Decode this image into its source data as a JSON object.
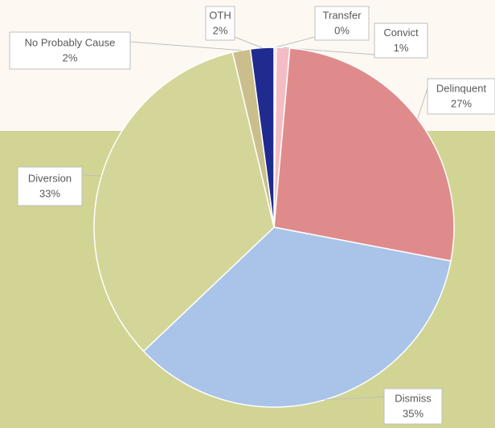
{
  "chart_data": {
    "type": "pie",
    "categories": [
      "Transfer",
      "Convict",
      "Delinquent",
      "Dismiss",
      "Diversion",
      "No Probably Cause",
      "OTH"
    ],
    "values": [
      0.2,
      1.2,
      26.6,
      34.9,
      33.4,
      1.6,
      2.1
    ],
    "value_labels": [
      "0%",
      "1%",
      "27%",
      "35%",
      "33%",
      "2%",
      "2%"
    ],
    "colors": [
      "#f7d2d8",
      "#f4bcc4",
      "#e08b8b",
      "#a9c4e8",
      "#d4d699",
      "#cabf8c",
      "#1f2b8e"
    ]
  }
}
